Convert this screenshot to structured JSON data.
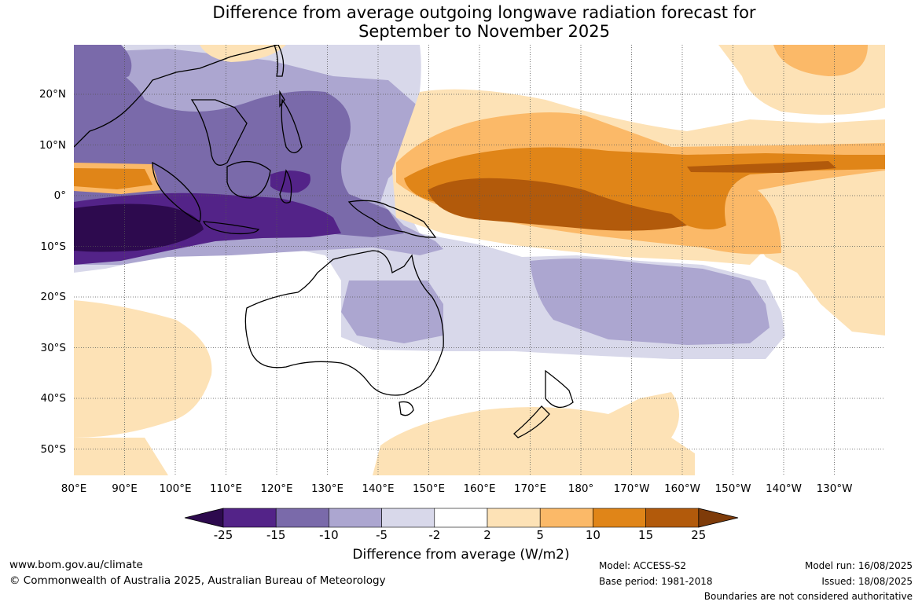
{
  "title_line1": "Difference from average outgoing longwave radiation forecast for",
  "title_line2": "September to November 2025",
  "x_labels": [
    "80°E",
    "90°E",
    "100°E",
    "110°E",
    "120°E",
    "130°E",
    "140°E",
    "150°E",
    "160°E",
    "170°E",
    "180°",
    "170°W",
    "160°W",
    "150°W",
    "140°W",
    "130°W"
  ],
  "y_labels": [
    "20°N",
    "10°N",
    "0°",
    "10°S",
    "20°S",
    "30°S",
    "40°S",
    "50°S"
  ],
  "colorbar": {
    "ticks": [
      "-25",
      "-15",
      "-10",
      "-5",
      "-2",
      "2",
      "5",
      "10",
      "15",
      "25"
    ],
    "colors": [
      "#2d0a4e",
      "#532388",
      "#7a6aaa",
      "#aca6d0",
      "#d8d8ea",
      "#ffffff",
      "#fde2b6",
      "#fbb968",
      "#e08518",
      "#b25a0b",
      "#7e3b09"
    ],
    "label": "Difference from average (W/m2)"
  },
  "footer": {
    "website": "www.bom.gov.au/climate",
    "copyright": "© Commonwealth of Australia 2025, Australian Bureau of Meteorology",
    "model": "Model: ACCESS-S2",
    "base_period": "Base period: 1981-2018",
    "model_run": "Model run: 16/08/2025",
    "issued": "Issued: 18/08/2025",
    "boundaries": "Boundaries are not considered authoritative"
  }
}
